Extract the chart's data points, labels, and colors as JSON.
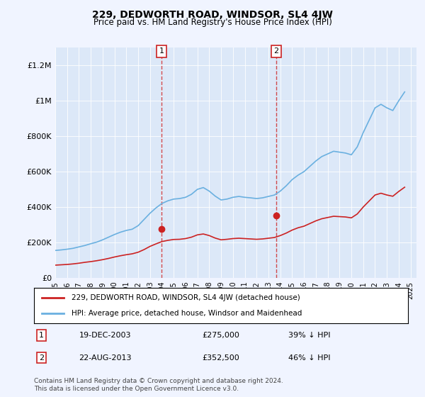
{
  "title": "229, DEDWORTH ROAD, WINDSOR, SL4 4JW",
  "subtitle": "Price paid vs. HM Land Registry's House Price Index (HPI)",
  "ylabel": "",
  "xlabel": "",
  "ylim": [
    0,
    1300000
  ],
  "yticks": [
    0,
    200000,
    400000,
    600000,
    800000,
    1000000,
    1200000
  ],
  "ytick_labels": [
    "£0",
    "£200K",
    "£400K",
    "£600K",
    "£800K",
    "£1M",
    "£1.2M"
  ],
  "background_color": "#f0f4ff",
  "plot_bg_color": "#dce8f8",
  "hpi_color": "#6ab0e0",
  "price_color": "#cc2222",
  "marker1_date_num": 2003.97,
  "marker2_date_num": 2013.64,
  "marker1_price": 275000,
  "marker2_price": 352500,
  "marker1_label": "1",
  "marker2_label": "2",
  "marker1_date_str": "19-DEC-2003",
  "marker1_price_str": "£275,000",
  "marker1_hpi_str": "39% ↓ HPI",
  "marker2_date_str": "22-AUG-2013",
  "marker2_price_str": "£352,500",
  "marker2_hpi_str": "46% ↓ HPI",
  "legend_line1": "229, DEDWORTH ROAD, WINDSOR, SL4 4JW (detached house)",
  "legend_line2": "HPI: Average price, detached house, Windsor and Maidenhead",
  "footnote": "Contains HM Land Registry data © Crown copyright and database right 2024.\nThis data is licensed under the Open Government Licence v3.0.",
  "hpi_years": [
    1995,
    1995.5,
    1996,
    1996.5,
    1997,
    1997.5,
    1998,
    1998.5,
    1999,
    1999.5,
    2000,
    2000.5,
    2001,
    2001.5,
    2002,
    2002.5,
    2003,
    2003.5,
    2004,
    2004.5,
    2005,
    2005.5,
    2006,
    2006.5,
    2007,
    2007.5,
    2008,
    2008.5,
    2009,
    2009.5,
    2010,
    2010.5,
    2011,
    2011.5,
    2012,
    2012.5,
    2013,
    2013.5,
    2014,
    2014.5,
    2015,
    2015.5,
    2016,
    2016.5,
    2017,
    2017.5,
    2018,
    2018.5,
    2019,
    2019.5,
    2020,
    2020.5,
    2021,
    2021.5,
    2022,
    2022.5,
    2023,
    2023.5,
    2024,
    2024.5
  ],
  "hpi_values": [
    155000,
    158000,
    162000,
    167000,
    175000,
    183000,
    193000,
    202000,
    215000,
    230000,
    245000,
    258000,
    268000,
    275000,
    295000,
    330000,
    365000,
    395000,
    420000,
    435000,
    445000,
    448000,
    455000,
    472000,
    500000,
    510000,
    490000,
    462000,
    440000,
    445000,
    455000,
    460000,
    455000,
    452000,
    448000,
    452000,
    460000,
    468000,
    490000,
    520000,
    555000,
    580000,
    600000,
    630000,
    660000,
    685000,
    700000,
    715000,
    710000,
    705000,
    695000,
    740000,
    820000,
    890000,
    960000,
    980000,
    960000,
    945000,
    1000000,
    1050000
  ],
  "price_years": [
    1995,
    1995.5,
    1996,
    1996.5,
    1997,
    1997.5,
    1998,
    1998.5,
    1999,
    1999.5,
    2000,
    2000.5,
    2001,
    2001.5,
    2002,
    2002.5,
    2003,
    2003.5,
    2004,
    2004.5,
    2005,
    2005.5,
    2006,
    2006.5,
    2007,
    2007.5,
    2008,
    2008.5,
    2009,
    2009.5,
    2010,
    2010.5,
    2011,
    2011.5,
    2012,
    2012.5,
    2013,
    2013.5,
    2014,
    2014.5,
    2015,
    2015.5,
    2016,
    2016.5,
    2017,
    2017.5,
    2018,
    2018.5,
    2019,
    2019.5,
    2020,
    2020.5,
    2021,
    2021.5,
    2022,
    2022.5,
    2023,
    2023.5,
    2024,
    2024.5
  ],
  "price_values": [
    72000,
    74000,
    76000,
    79000,
    83000,
    88000,
    92000,
    97000,
    103000,
    110000,
    118000,
    125000,
    131000,
    136000,
    145000,
    160000,
    178000,
    192000,
    205000,
    212000,
    217000,
    218000,
    222000,
    230000,
    243000,
    248000,
    239000,
    225000,
    215000,
    218000,
    222000,
    224000,
    222000,
    220000,
    218000,
    220000,
    224000,
    228000,
    239000,
    253000,
    270000,
    283000,
    292000,
    307000,
    322000,
    334000,
    341000,
    348000,
    346000,
    344000,
    339000,
    361000,
    400000,
    434000,
    468000,
    478000,
    468000,
    461000,
    488000,
    512000
  ]
}
